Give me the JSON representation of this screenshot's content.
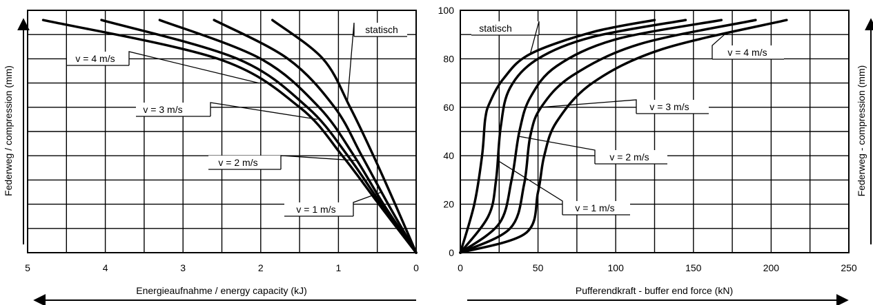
{
  "chart_data": [
    {
      "type": "line",
      "xlabel": "Energieaufnahme / energy capacity (kJ)",
      "ylabel": "Federweg / compression (mm)",
      "xlim": [
        5,
        0
      ],
      "ylim": [
        0,
        100
      ],
      "x_ticks": [
        "5",
        "4",
        "3",
        "2",
        "1",
        "0"
      ],
      "grid": true,
      "series": [
        {
          "name": "statisch",
          "points": [
            [
              0,
              0
            ],
            [
              0.27,
              20
            ],
            [
              0.55,
              40
            ],
            [
              0.85,
              60
            ],
            [
              1.2,
              80
            ],
            [
              1.85,
              96
            ]
          ]
        },
        {
          "name": "v = 1 m/s",
          "points": [
            [
              0,
              0
            ],
            [
              0.36,
              20
            ],
            [
              0.7,
              40
            ],
            [
              1.05,
              60
            ],
            [
              1.65,
              80
            ],
            [
              2.6,
              96
            ]
          ]
        },
        {
          "name": "v = 2 m/s",
          "points": [
            [
              0,
              0
            ],
            [
              0.42,
              20
            ],
            [
              0.8,
              40
            ],
            [
              1.25,
              60
            ],
            [
              2.0,
              80
            ],
            [
              3.3,
              96
            ]
          ]
        },
        {
          "name": "v = 3 m/s",
          "points": [
            [
              0,
              0
            ],
            [
              0.45,
              20
            ],
            [
              0.88,
              40
            ],
            [
              1.4,
              60
            ],
            [
              2.3,
              80
            ],
            [
              4.05,
              96
            ]
          ]
        },
        {
          "name": "v = 4 m/s",
          "points": [
            [
              0,
              0
            ],
            [
              0.48,
              20
            ],
            [
              0.95,
              40
            ],
            [
              1.5,
              60
            ],
            [
              2.55,
              80
            ],
            [
              4.8,
              96
            ]
          ]
        }
      ],
      "annotations": [
        {
          "text": "statisch",
          "series": "statisch"
        },
        {
          "text": "v = 1 m/s",
          "series": "v = 1 m/s"
        },
        {
          "text": "v = 2 m/s",
          "series": "v = 2 m/s"
        },
        {
          "text": "v = 3 m/s",
          "series": "v = 3 m/s"
        },
        {
          "text": "v = 4 m/s",
          "series": "v = 4 m/s"
        }
      ]
    },
    {
      "type": "line",
      "xlabel": "Pufferendkraft - buffer end force (kN)",
      "ylabel": "Federweg - compression (mm)",
      "xlim": [
        0,
        250
      ],
      "ylim": [
        0,
        100
      ],
      "x_ticks": [
        "0",
        "50",
        "100",
        "150",
        "200",
        "250"
      ],
      "y_ticks": [
        "0",
        "20",
        "40",
        "60",
        "80",
        "100"
      ],
      "grid": true,
      "series": [
        {
          "name": "statisch",
          "points": [
            [
              0,
              0
            ],
            [
              9,
              20
            ],
            [
              14,
              40
            ],
            [
              16,
              55
            ],
            [
              19,
              62
            ],
            [
              28,
              72
            ],
            [
              45,
              82
            ],
            [
              85,
              91
            ],
            [
              125,
              96
            ]
          ]
        },
        {
          "name": "v = 1 m/s",
          "points": [
            [
              0,
              0
            ],
            [
              18,
              15
            ],
            [
              23,
              30
            ],
            [
              26,
              52
            ],
            [
              32,
              68
            ],
            [
              50,
              80
            ],
            [
              85,
              89
            ],
            [
              145,
              96
            ]
          ]
        },
        {
          "name": "v = 2 m/s",
          "points": [
            [
              0,
              0
            ],
            [
              25,
              12
            ],
            [
              33,
              30
            ],
            [
              38,
              50
            ],
            [
              45,
              64
            ],
            [
              62,
              77
            ],
            [
              100,
              88
            ],
            [
              168,
              96
            ]
          ]
        },
        {
          "name": "v = 3 m/s",
          "points": [
            [
              0,
              0
            ],
            [
              32,
              10
            ],
            [
              41,
              28
            ],
            [
              45,
              48
            ],
            [
              52,
              60
            ],
            [
              72,
              73
            ],
            [
              115,
              86
            ],
            [
              190,
              96
            ]
          ]
        },
        {
          "name": "v = 4 m/s",
          "points": [
            [
              0,
              0
            ],
            [
              42,
              8
            ],
            [
              50,
              25
            ],
            [
              54,
              40
            ],
            [
              62,
              54
            ],
            [
              85,
              70
            ],
            [
              130,
              84
            ],
            [
              210,
              96
            ]
          ]
        }
      ],
      "annotations": [
        {
          "text": "statisch",
          "series": "statisch"
        },
        {
          "text": "v = 1 m/s",
          "series": "v = 1 m/s"
        },
        {
          "text": "v = 2 m/s",
          "series": "v = 2 m/s"
        },
        {
          "text": "v = 3 m/s",
          "series": "v = 3 m/s"
        },
        {
          "text": "v = 4 m/s",
          "series": "v = 4 m/s"
        }
      ]
    }
  ]
}
